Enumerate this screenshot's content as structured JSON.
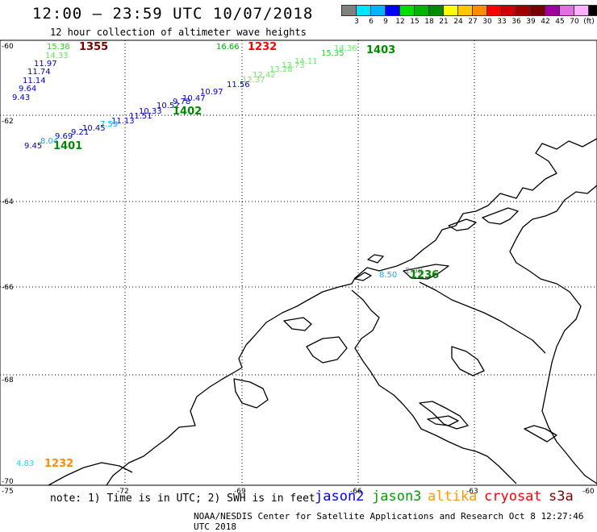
{
  "title": "12:00 – 23:59 UTC 10/07/2018",
  "subtitle": "12 hour collection of altimeter wave heights",
  "legend": {
    "colors": [
      "#808080",
      "#00e5ff",
      "#00b4ff",
      "#0000ff",
      "#00e000",
      "#00b400",
      "#008a00",
      "#ffff00",
      "#ffc800",
      "#ff8c00",
      "#ff0000",
      "#d00000",
      "#a00000",
      "#780000",
      "#a000a0",
      "#e070e0",
      "#ffb0ff",
      "#000000"
    ],
    "labels": [
      "3",
      "6",
      "9",
      "12",
      "15",
      "18",
      "21",
      "24",
      "27",
      "30",
      "33",
      "36",
      "39",
      "42",
      "45",
      "70",
      "(ft)"
    ]
  },
  "lat_labels": [
    "-60",
    "-62",
    "-64",
    "-66",
    "-68",
    "-70"
  ],
  "lon_labels": [
    "-75",
    "-72",
    "-69",
    "-66",
    "-63",
    "-60"
  ],
  "wave_labels": [
    {
      "t": "15.38",
      "c": "#33cc33"
    },
    {
      "t": "14.33",
      "c": "#55ee55"
    },
    {
      "t": "11.97",
      "c": "#0000cc"
    },
    {
      "t": "11.74",
      "c": "#0000cc"
    },
    {
      "t": "11.14",
      "c": "#0000cc"
    },
    {
      "t": "9.64",
      "c": "#0000cc"
    },
    {
      "t": "9.43",
      "c": "#0000cc"
    },
    {
      "t": "16.66",
      "c": "#00aa00"
    },
    {
      "t": "15.35",
      "c": "#33cc33"
    },
    {
      "t": "14.36",
      "c": "#66ee66"
    },
    {
      "t": "14.11",
      "c": "#66ee66"
    },
    {
      "t": "13.73",
      "c": "#66ee66"
    },
    {
      "t": "13.28",
      "c": "#66ee66"
    },
    {
      "t": "12.42",
      "c": "#66ee66"
    },
    {
      "t": "12.37",
      "c": "#66ee66"
    },
    {
      "t": "11.56",
      "c": "#0000cc"
    },
    {
      "t": "10.97",
      "c": "#0000cc"
    },
    {
      "t": "10.47",
      "c": "#0000cc"
    },
    {
      "t": "10.33",
      "c": "#0000cc"
    },
    {
      "t": "10.52",
      "c": "#0000cc"
    },
    {
      "t": "9.78",
      "c": "#0000cc"
    },
    {
      "t": "11.51",
      "c": "#0000cc"
    },
    {
      "t": "11.13",
      "c": "#0000cc"
    },
    {
      "t": "7.59",
      "c": "#00b4ff"
    },
    {
      "t": "10.45",
      "c": "#0000cc"
    },
    {
      "t": "9.21",
      "c": "#0000cc"
    },
    {
      "t": "9.69",
      "c": "#0000cc"
    },
    {
      "t": "8.04",
      "c": "#00b4ff"
    },
    {
      "t": "9.45",
      "c": "#0000cc"
    },
    {
      "t": "8.50",
      "c": "#00b4ff"
    },
    {
      "t": "2.98",
      "c": "#808080"
    },
    {
      "t": "4.83",
      "c": "#00e5ff"
    }
  ],
  "time_labels": [
    {
      "t": "1355",
      "c": "#780000"
    },
    {
      "t": "1232",
      "c": "#ff0000"
    },
    {
      "t": "1403",
      "c": "#008a00"
    },
    {
      "t": "1402",
      "c": "#008a00"
    },
    {
      "t": "1401",
      "c": "#008a00"
    },
    {
      "t": "1236",
      "c": "#008a00"
    },
    {
      "t": "1232",
      "c": "#ff8c00"
    }
  ],
  "note": "note: 1) Time is in UTC; 2) SWH is in feet",
  "satellites": [
    {
      "name": "jason2",
      "color": "#0000ff"
    },
    {
      "name": "jason3",
      "color": "#00a000"
    },
    {
      "name": "altika",
      "color": "#ff9900"
    },
    {
      "name": "cryosat",
      "color": "#ff0000"
    },
    {
      "name": "s3a",
      "color": "#800000"
    }
  ],
  "footer": "NOAA/NESDIS Center for Satellite Applications and Research   Oct  8 12:27:46 UTC 2018"
}
